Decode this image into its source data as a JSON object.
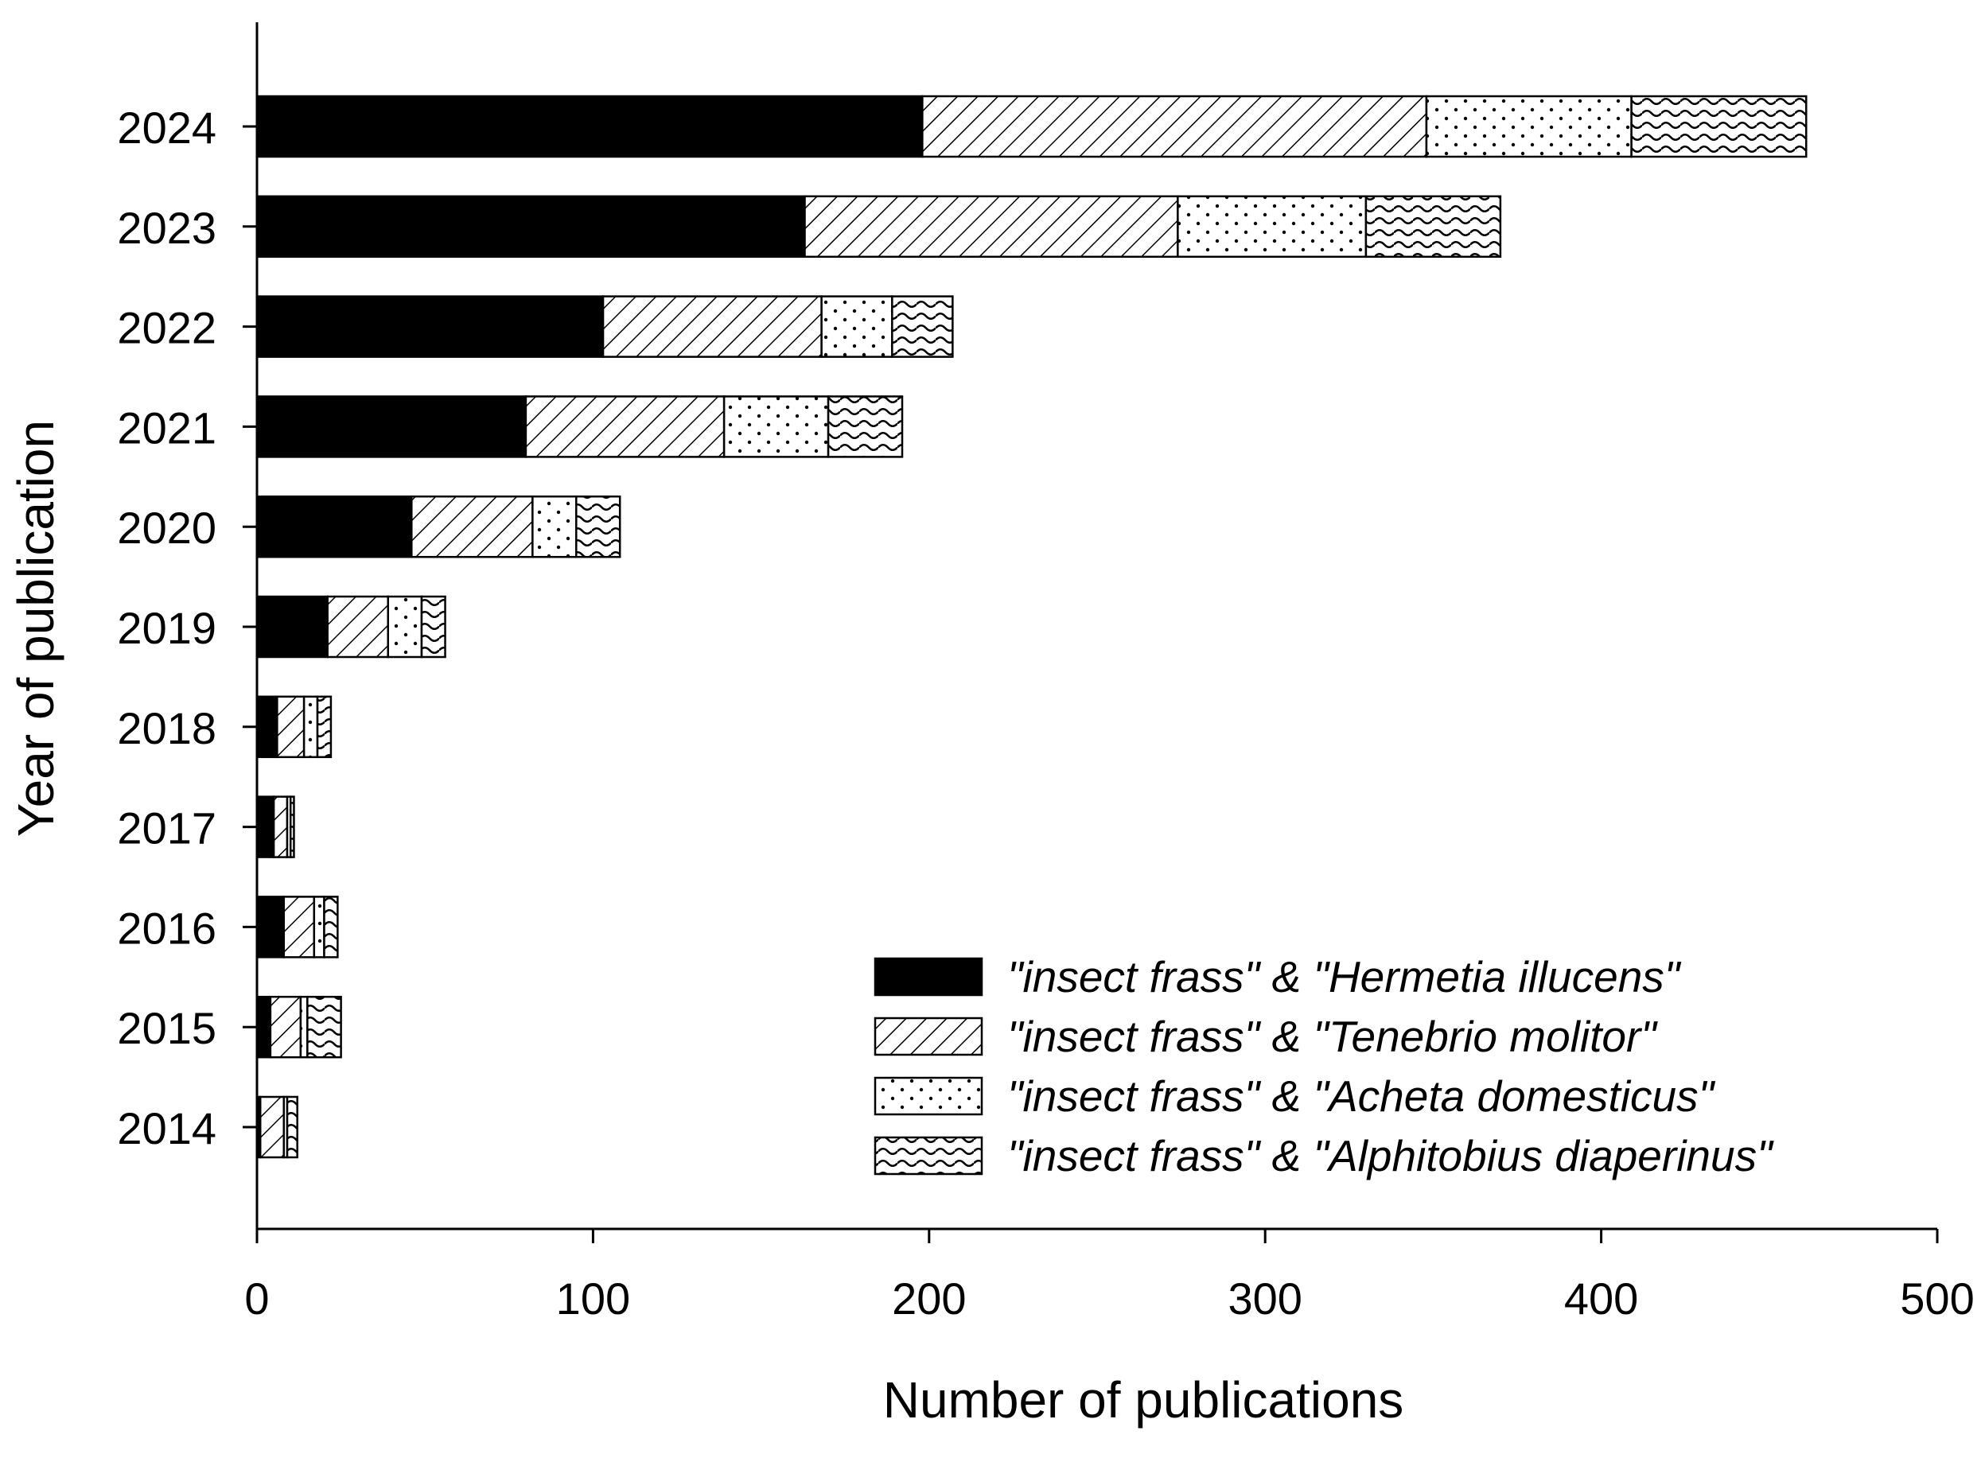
{
  "chart_data": {
    "type": "bar",
    "orientation": "horizontal",
    "stacked": true,
    "title": "",
    "xlabel": "Number of publications",
    "ylabel": "Year of publication",
    "xlim": [
      0,
      500
    ],
    "x_ticks": [
      0,
      100,
      200,
      300,
      400,
      500
    ],
    "grid": false,
    "legend_position": "bottom-right",
    "categories": [
      "2024",
      "2023",
      "2022",
      "2021",
      "2020",
      "2019",
      "2018",
      "2017",
      "2016",
      "2015",
      "2014"
    ],
    "series": [
      {
        "name": "\"insect frass\" & \"Hermetia illucens\"",
        "pattern": "solid",
        "values": [
          198,
          163,
          103,
          80,
          46,
          21,
          6,
          5,
          8,
          4,
          1
        ]
      },
      {
        "name": "\"insect frass\" & \"Tenebrio molitor\"",
        "pattern": "diagonal-hatch",
        "values": [
          150,
          111,
          65,
          59,
          36,
          18,
          8,
          4,
          9,
          9,
          7
        ]
      },
      {
        "name": "\"insect frass\" & \"Acheta domesticus\"",
        "pattern": "dots",
        "values": [
          61,
          56,
          21,
          31,
          13,
          10,
          4,
          1,
          3,
          2,
          1
        ]
      },
      {
        "name": "\"insect frass\" & \"Alphitobius diaperinus\"",
        "pattern": "waves",
        "values": [
          52,
          40,
          18,
          22,
          13,
          7,
          4,
          1,
          4,
          10,
          3
        ]
      }
    ]
  },
  "colors": {
    "fill": "#000000",
    "background": "#ffffff"
  }
}
